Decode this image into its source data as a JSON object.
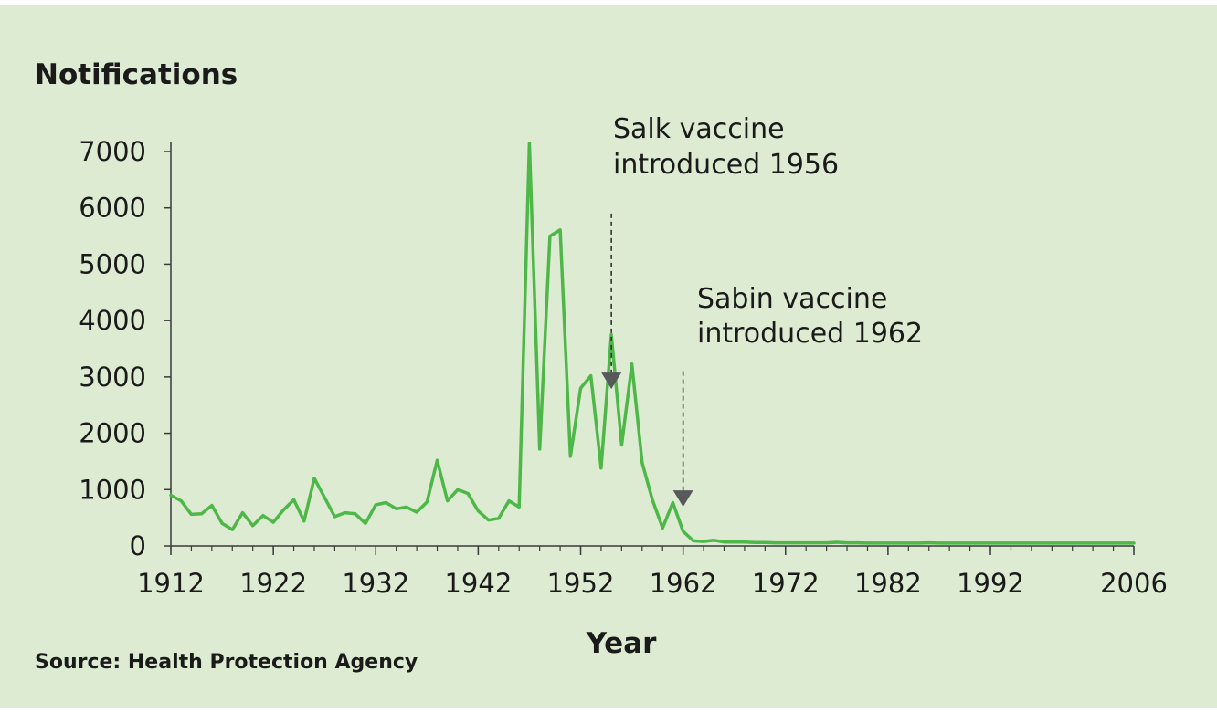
{
  "chart_data": {
    "type": "line",
    "ylabel": "Notifications",
    "xlabel": "Year",
    "source": "Source: Health Protection Agency",
    "xlim": [
      1912,
      2006
    ],
    "ylim": [
      0,
      7000
    ],
    "x_ticks": [
      1912,
      1922,
      1932,
      1942,
      1952,
      1962,
      1972,
      1982,
      1992,
      2006
    ],
    "y_ticks": [
      0,
      1000,
      2000,
      3000,
      4000,
      5000,
      6000,
      7000
    ],
    "series_color": "#4db848",
    "arrow_color": "#58595b",
    "x": [
      1912,
      1913,
      1914,
      1915,
      1916,
      1917,
      1918,
      1919,
      1920,
      1921,
      1922,
      1923,
      1924,
      1925,
      1926,
      1927,
      1928,
      1929,
      1930,
      1931,
      1932,
      1933,
      1934,
      1935,
      1936,
      1937,
      1938,
      1939,
      1940,
      1941,
      1942,
      1943,
      1944,
      1945,
      1946,
      1947,
      1948,
      1949,
      1950,
      1951,
      1952,
      1953,
      1954,
      1955,
      1956,
      1957,
      1958,
      1959,
      1960,
      1961,
      1962,
      1963,
      1964,
      1965,
      1966,
      1967,
      1968,
      1969,
      1970,
      1971,
      1972,
      1973,
      1974,
      1975,
      1976,
      1977,
      1978,
      1979,
      1980,
      1981,
      1982,
      1983,
      1984,
      1985,
      1986,
      1987,
      1988,
      1989,
      1990,
      1991,
      1992,
      1993,
      1994,
      1995,
      1996,
      1997,
      1998,
      1999,
      2000,
      2001,
      2002,
      2003,
      2004,
      2005,
      2006
    ],
    "values": [
      900,
      800,
      560,
      570,
      720,
      400,
      290,
      590,
      360,
      540,
      420,
      640,
      820,
      440,
      1200,
      860,
      520,
      590,
      570,
      400,
      730,
      770,
      660,
      690,
      600,
      780,
      1520,
      800,
      1000,
      930,
      620,
      460,
      490,
      800,
      690,
      7150,
      1720,
      5500,
      5610,
      1590,
      2800,
      3020,
      1380,
      3750,
      1790,
      3230,
      1480,
      820,
      320,
      770,
      260,
      90,
      80,
      100,
      70,
      70,
      70,
      60,
      60,
      55,
      55,
      55,
      55,
      55,
      55,
      65,
      55,
      55,
      50,
      50,
      50,
      50,
      50,
      50,
      55,
      50,
      50,
      50,
      50,
      50,
      50,
      50,
      50,
      50,
      50,
      50,
      50,
      50,
      50,
      50,
      50,
      50,
      50,
      50,
      50
    ],
    "annotations": [
      {
        "line1": "Salk vaccine",
        "line2": "introduced 1956",
        "x": 1955,
        "arrow_top": 5900,
        "arrow_tip": 2850
      },
      {
        "line1": "Sabin vaccine",
        "line2": "introduced 1962",
        "x": 1962,
        "arrow_top": 3100,
        "arrow_tip": 760
      }
    ]
  }
}
